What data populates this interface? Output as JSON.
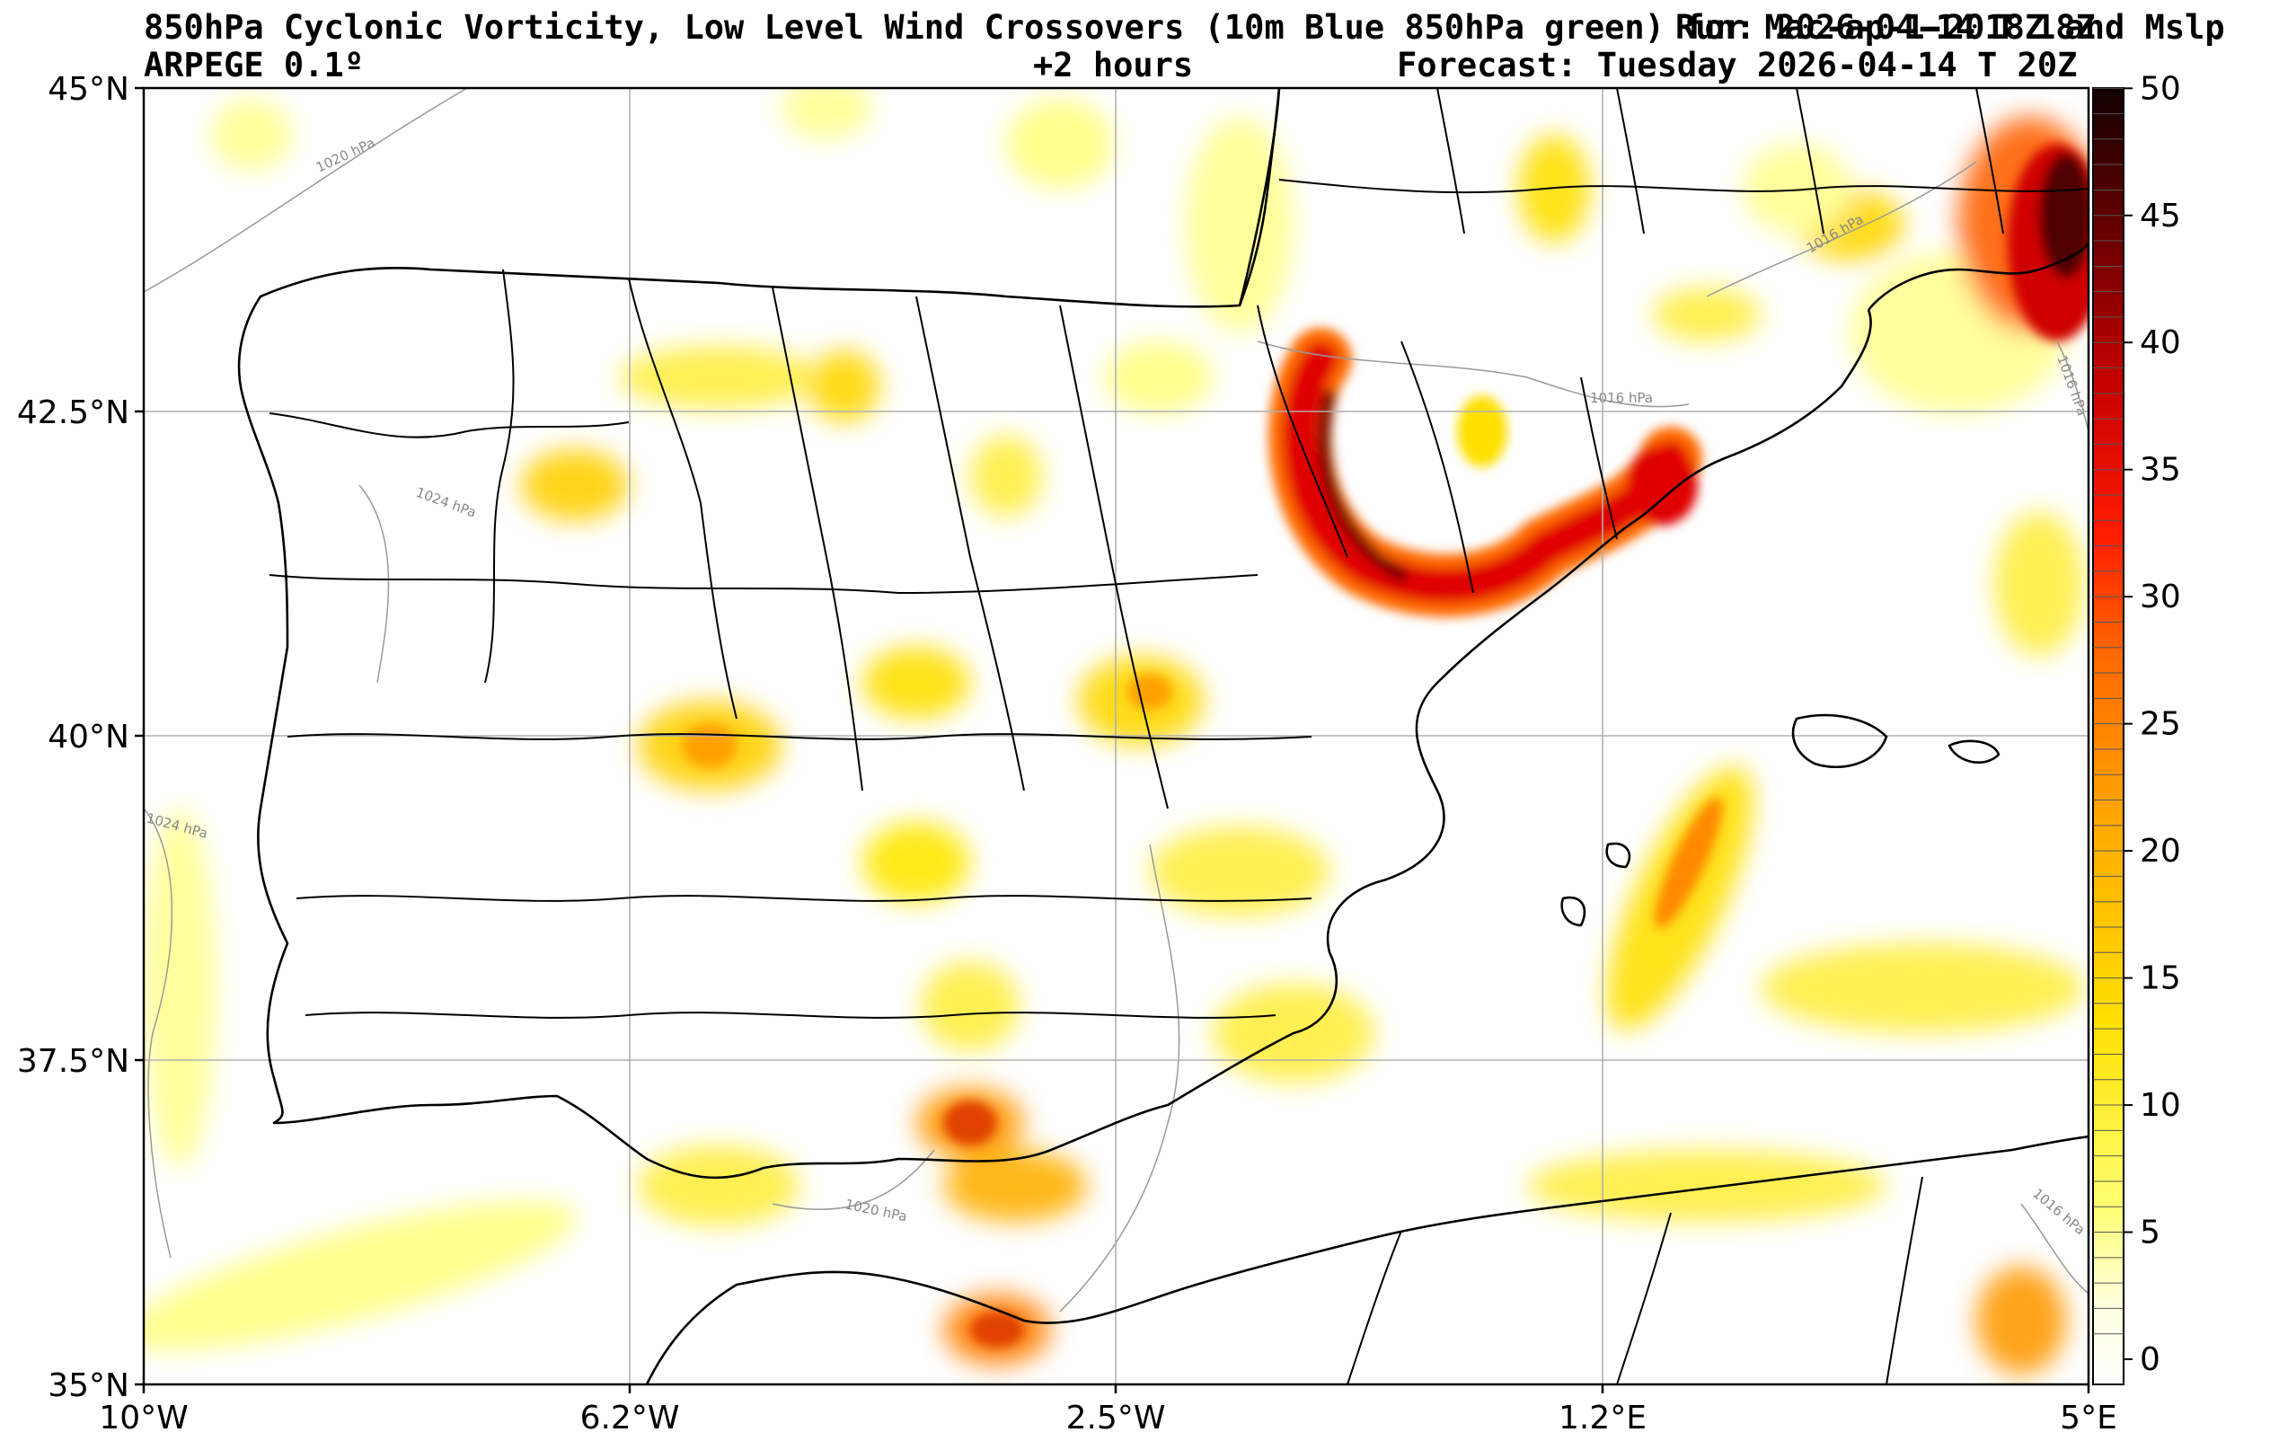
{
  "header": {
    "title_line1": "850hPa Cyclonic Vorticity, Low Level Wind Crossovers (10m Blue 850hPa green) for Mac-ap-1-2018Z and Mslp",
    "model": "ARPEGE 0.1º",
    "lead": "+2 hours",
    "forecast": "Forecast: Tuesday 2026-04-14 T 20Z",
    "run": "Run: 2026-04-14 T 18Z"
  },
  "axes": {
    "lat_labels": [
      "45°N",
      "42.5°N",
      "40°N",
      "37.5°N",
      "35°N"
    ],
    "lon_labels": [
      "10°W",
      "6.2°W",
      "2.5°W",
      "1.2°E",
      "5°E"
    ]
  },
  "colorbar": {
    "ticks": [
      "0",
      "5",
      "10",
      "15",
      "20",
      "25",
      "30",
      "35",
      "40",
      "45",
      "50"
    ],
    "range": [
      0,
      51
    ],
    "colors": [
      "#ffffff",
      "#ffff80",
      "#ffe000",
      "#ff9900",
      "#ff2000",
      "#b00000",
      "#1a0000"
    ]
  },
  "isobars": [
    "1020 hPa",
    "1024 hPa",
    "1024 hPa",
    "1020 hPa",
    "1016 hPa",
    "1016 hPa",
    "1016 hPa",
    "1016 hPa"
  ]
}
